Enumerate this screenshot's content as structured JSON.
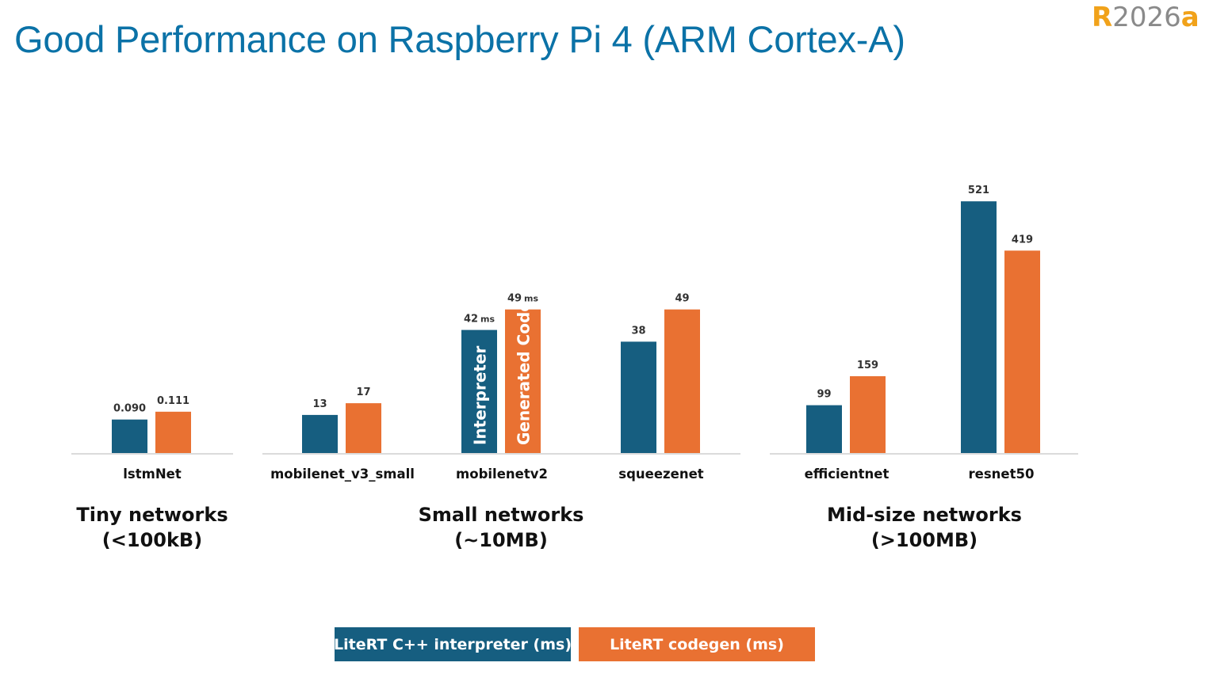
{
  "header": {
    "title": "Good Performance on Raspberry Pi 4 (ARM Cortex-A)",
    "logo": {
      "letter": "R",
      "year": "2026",
      "suffix": "a"
    }
  },
  "colors": {
    "interpreter": "#165e80",
    "codegen": "#e97132",
    "title": "#0b72a7",
    "axis": "#cfcfcf"
  },
  "chart_data": {
    "type": "bar",
    "title": "Good Performance on Raspberry Pi 4 (ARM Cortex-A)",
    "categories": [
      "lstmNet",
      "mobilenet_v3_small",
      "mobilenetv2",
      "squeezenet",
      "efficientnet",
      "resnet50"
    ],
    "series": [
      {
        "name": "LiteRT C++ interpreter (ms)",
        "values": [
          0.09,
          13,
          42,
          38,
          99,
          521
        ],
        "labels": [
          "0.090",
          "13",
          "42",
          "38",
          "99",
          "521"
        ]
      },
      {
        "name": "LiteRT codegen (ms)",
        "values": [
          0.111,
          17,
          49,
          49,
          159,
          419
        ],
        "labels": [
          "0.111",
          "17",
          "49",
          "49",
          "159",
          "419"
        ]
      }
    ],
    "units_suffix": "ms",
    "groups": [
      {
        "name": "Tiny networks",
        "sub": "(<100kB)",
        "categories": [
          "lstmNet"
        ]
      },
      {
        "name": "Small networks",
        "sub": "(~10MB)",
        "categories": [
          "mobilenet_v3_small",
          "mobilenetv2",
          "squeezenet"
        ]
      },
      {
        "name": "Mid-size networks",
        "sub": ">100MB",
        "sub_display": "(>100MB)",
        "categories": [
          "efficientnet",
          "resnet50"
        ]
      }
    ],
    "group_ylim": [
      [
        0,
        0.2
      ],
      [
        0,
        70
      ],
      [
        0,
        600
      ]
    ],
    "bar_annotations": [
      {
        "category": "mobilenetv2",
        "series": 0,
        "text": "Interpreter"
      },
      {
        "category": "mobilenetv2",
        "series": 1,
        "text": "Generated Code"
      }
    ],
    "legend_position": "bottom",
    "grid": false
  }
}
